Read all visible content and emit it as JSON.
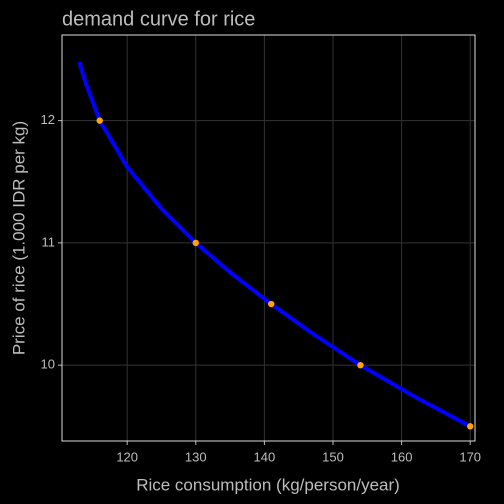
{
  "chart_data": {
    "type": "line",
    "title": "demand curve for rice",
    "x_label": "Rice consumption (kg/person/year)",
    "y_label": "Price of rice (1.000 IDR per kg)",
    "xlim": [
      110.5,
      170.7
    ],
    "ylim": [
      9.38,
      12.7
    ],
    "xticks": [
      120,
      130,
      140,
      150,
      160,
      170
    ],
    "yticks": [
      10,
      11,
      12
    ],
    "grid": true,
    "series": [
      {
        "type": "line",
        "color": "#0000ff",
        "x": [
          113,
          114,
          116,
          120,
          125,
          130,
          135,
          141,
          147,
          154,
          162,
          170
        ],
        "values": [
          12.48,
          12.3,
          12.0,
          11.62,
          11.28,
          11.0,
          10.76,
          10.5,
          10.26,
          10.0,
          9.74,
          9.5
        ]
      },
      {
        "type": "scatter",
        "color": "#ffa500",
        "x": [
          116,
          130,
          141,
          154,
          170
        ],
        "values": [
          12,
          11,
          10.5,
          10,
          9.5
        ]
      }
    ]
  }
}
